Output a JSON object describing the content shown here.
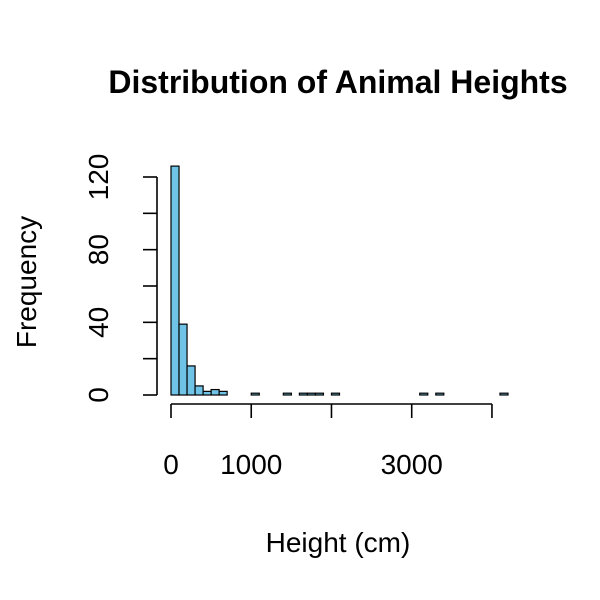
{
  "chart_data": {
    "type": "bar",
    "title": "Distribution of Animal Heights",
    "xlabel": "Height (cm)",
    "ylabel": "Frequency",
    "bin_width": 100,
    "xlim": [
      0,
      4200
    ],
    "ylim": [
      0,
      120
    ],
    "x_ticks": [
      0,
      1000,
      3000
    ],
    "x_tick_labels": [
      "0",
      "1000",
      "3000"
    ],
    "x_axis_extent": [
      0,
      4000
    ],
    "y_ticks": [
      0,
      40,
      80,
      120
    ],
    "y_tick_labels": [
      "0",
      "40",
      "80",
      "120"
    ],
    "y_minor_ticks": [
      20,
      60,
      100
    ],
    "bins": [
      {
        "x0": 0,
        "x1": 100,
        "count": 126
      },
      {
        "x0": 100,
        "x1": 200,
        "count": 39
      },
      {
        "x0": 200,
        "x1": 300,
        "count": 16
      },
      {
        "x0": 300,
        "x1": 400,
        "count": 5
      },
      {
        "x0": 400,
        "x1": 500,
        "count": 2
      },
      {
        "x0": 500,
        "x1": 600,
        "count": 3
      },
      {
        "x0": 600,
        "x1": 700,
        "count": 2
      },
      {
        "x0": 1000,
        "x1": 1100,
        "count": 1
      },
      {
        "x0": 1400,
        "x1": 1500,
        "count": 1
      },
      {
        "x0": 1600,
        "x1": 1700,
        "count": 1
      },
      {
        "x0": 1700,
        "x1": 1800,
        "count": 1
      },
      {
        "x0": 1800,
        "x1": 1900,
        "count": 1
      },
      {
        "x0": 2000,
        "x1": 2100,
        "count": 1
      },
      {
        "x0": 3100,
        "x1": 3200,
        "count": 1
      },
      {
        "x0": 3300,
        "x1": 3400,
        "count": 1
      },
      {
        "x0": 4100,
        "x1": 4200,
        "count": 1
      }
    ],
    "colors": {
      "bar_fill": "#6fc3e6",
      "bar_stroke": "#000000",
      "axis": "#000000"
    },
    "grid": false,
    "legend": "none"
  }
}
